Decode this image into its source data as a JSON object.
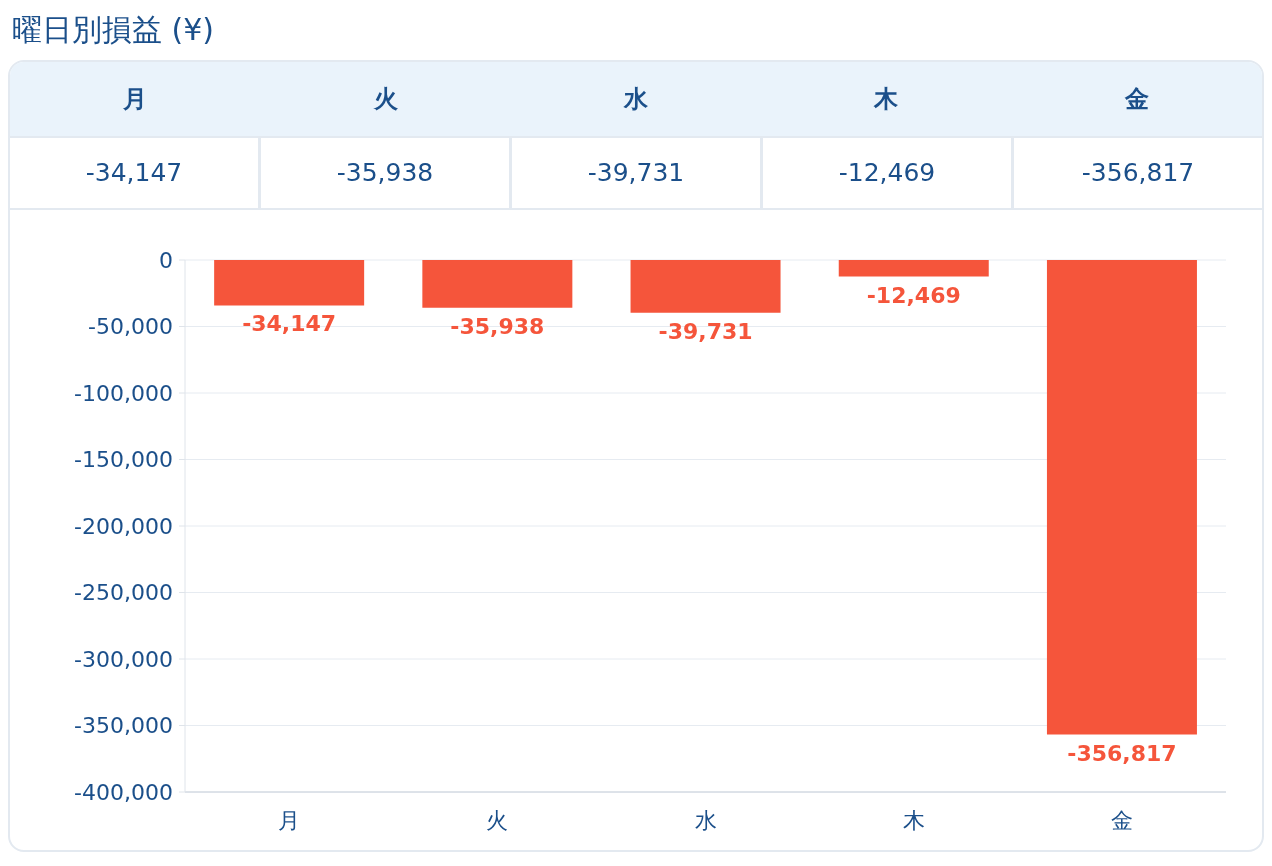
{
  "chart_data": {
    "type": "bar",
    "title": "曜日別損益 (¥)",
    "categories": [
      "月",
      "火",
      "水",
      "木",
      "金"
    ],
    "values": [
      -34147,
      -35938,
      -39731,
      -12469,
      -356817
    ],
    "value_labels": [
      "-34,147",
      "-35,938",
      "-39,731",
      "-12,469",
      "-356,817"
    ],
    "color": "#f5553b",
    "ylim": [
      -400000,
      0
    ],
    "yticks": [
      {
        "value": -400000,
        "label": "-400,000"
      },
      {
        "value": -350000,
        "label": "-350,000"
      },
      {
        "value": -300000,
        "label": "-300,000"
      },
      {
        "value": -250000,
        "label": "-250,000"
      },
      {
        "value": -200000,
        "label": "-200,000"
      },
      {
        "value": -150000,
        "label": "-150,000"
      },
      {
        "value": -100000,
        "label": "-100,000"
      },
      {
        "value": -50000,
        "label": "-50,000"
      },
      0
    ],
    "grid": "y"
  }
}
